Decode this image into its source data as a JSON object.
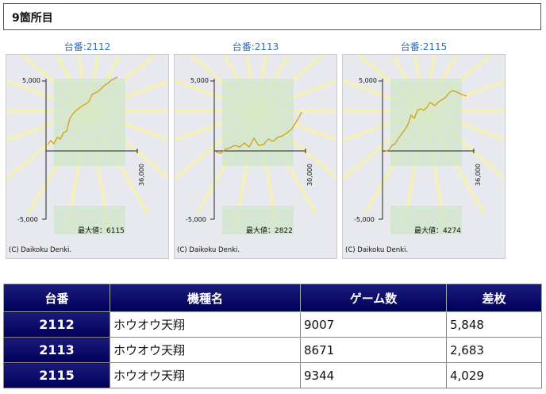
{
  "header": {
    "title": "9箇所目"
  },
  "graphs": [
    {
      "label": "台番:2112",
      "y_top": "5,000",
      "y_bottom": "-5,000",
      "x_end": "36,000",
      "max_label": "最大値：6115",
      "credit": "(C) Daikoku Denki."
    },
    {
      "label": "台番:2113",
      "y_top": "5,000",
      "y_bottom": "-5,000",
      "x_end": "30,000",
      "max_label": "最大値：2822",
      "credit": "(C) Daikoku Denki."
    },
    {
      "label": "台番:2115",
      "y_top": "5,000",
      "y_bottom": "-5,000",
      "x_end": "36,000",
      "max_label": "最大値：4274",
      "credit": "(C) Daikoku Denki."
    }
  ],
  "table": {
    "headers": [
      "台番",
      "機種名",
      "ゲーム数",
      "差枚"
    ],
    "rows": [
      {
        "number": "2112",
        "model": "ホウオウ天翔",
        "games": "9007",
        "diff": "5,848"
      },
      {
        "number": "2113",
        "model": "ホウオウ天翔",
        "games": "8671",
        "diff": "2,683"
      },
      {
        "number": "2115",
        "model": "ホウオウ天翔",
        "games": "9344",
        "diff": "4,029"
      }
    ]
  },
  "colors": {
    "line": "#d4a017",
    "table_header": "#000066",
    "label": "#2f6fb0"
  }
}
